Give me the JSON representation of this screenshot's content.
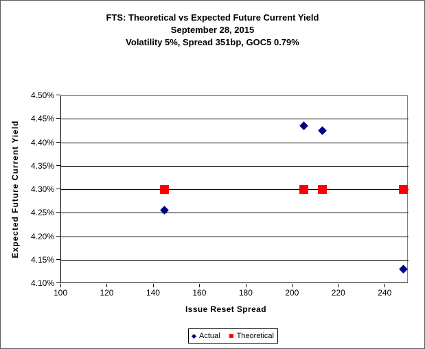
{
  "chart_data": {
    "type": "scatter",
    "title": "FTS: Theoretical vs Expected Future Current Yield",
    "subtitle": "September 28, 2015",
    "subtitle2": "Volatility 5%, Spread 351bp, GOC5 0.79%",
    "xlabel": "Issue Reset Spread",
    "ylabel": "Expected Future Current Yield",
    "xlim": [
      100,
      250
    ],
    "ylim": [
      4.1,
      4.5
    ],
    "x_ticks": [
      100,
      120,
      140,
      160,
      180,
      200,
      220,
      240
    ],
    "y_ticks": [
      4.1,
      4.15,
      4.2,
      4.25,
      4.3,
      4.35,
      4.4,
      4.45,
      4.5
    ],
    "y_tick_suffix": "%",
    "grid": "horizontal-major-only",
    "gridline_color": "#000000",
    "plot_border_color": "#808080",
    "legend_position": "bottom-center",
    "series": [
      {
        "name": "Actual",
        "marker": "diamond",
        "color": "#000080",
        "points": [
          [
            145,
            4.255
          ],
          [
            205,
            4.435
          ],
          [
            213,
            4.425
          ],
          [
            248,
            4.13
          ]
        ]
      },
      {
        "name": "Theoretical",
        "marker": "square",
        "color": "#ff0000",
        "points": [
          [
            145,
            4.3
          ],
          [
            205,
            4.3
          ],
          [
            213,
            4.3
          ],
          [
            248,
            4.3
          ]
        ]
      }
    ]
  }
}
